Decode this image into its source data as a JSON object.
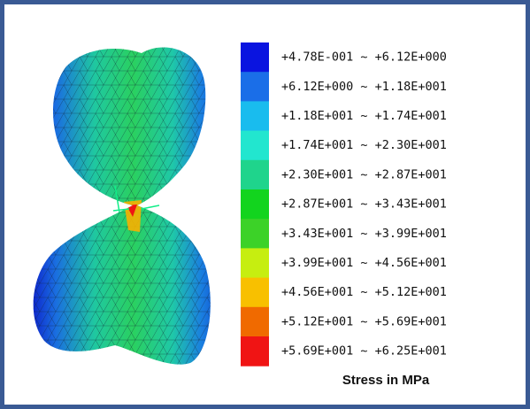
{
  "legend": {
    "items": [
      {
        "label": "+4.78E-001 ~ +6.12E+000",
        "color": "#0a14e0"
      },
      {
        "label": "+6.12E+000 ~ +1.18E+001",
        "color": "#1a6ee8"
      },
      {
        "label": "+1.18E+001 ~ +1.74E+001",
        "color": "#19bcee"
      },
      {
        "label": "+1.74E+001 ~ +2.30E+001",
        "color": "#22e6cf"
      },
      {
        "label": "+2.30E+001 ~ +2.87E+001",
        "color": "#1fd48c"
      },
      {
        "label": "+2.87E+001 ~ +3.43E+001",
        "color": "#12d41e"
      },
      {
        "label": "+3.43E+001 ~ +3.99E+001",
        "color": "#3cd228"
      },
      {
        "label": "+3.99E+001 ~ +4.56E+001",
        "color": "#c6ee10"
      },
      {
        "label": "+4.56E+001 ~ +5.12E+001",
        "color": "#f8c000"
      },
      {
        "label": "+5.12E+001 ~ +5.69E+001",
        "color": "#f06a00"
      },
      {
        "label": "+5.69E+001 ~ +6.25E+001",
        "color": "#f01414"
      }
    ],
    "caption": "Stress in MPa"
  }
}
